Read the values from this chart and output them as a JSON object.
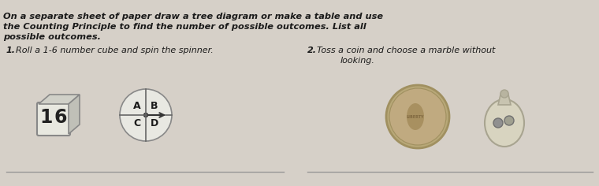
{
  "bg_color": "#d6d0c8",
  "title_lines": [
    "On a separate sheet of paper draw a tree diagram or make a table and use",
    "the Counting Principle to find the number of possible outcomes. List all",
    "possible outcomes."
  ],
  "title_style": "bold",
  "q1_label": "1.",
  "q1_text": "Roll a 1-6 number cube and spin the spinner.",
  "q2_label": "2.",
  "q2_text": "Toss a coin and choose a marble without\nlooking.",
  "line_color": "#999999",
  "text_color": "#1a1a1a",
  "figsize": [
    7.6,
    2.36
  ],
  "dpi": 100
}
